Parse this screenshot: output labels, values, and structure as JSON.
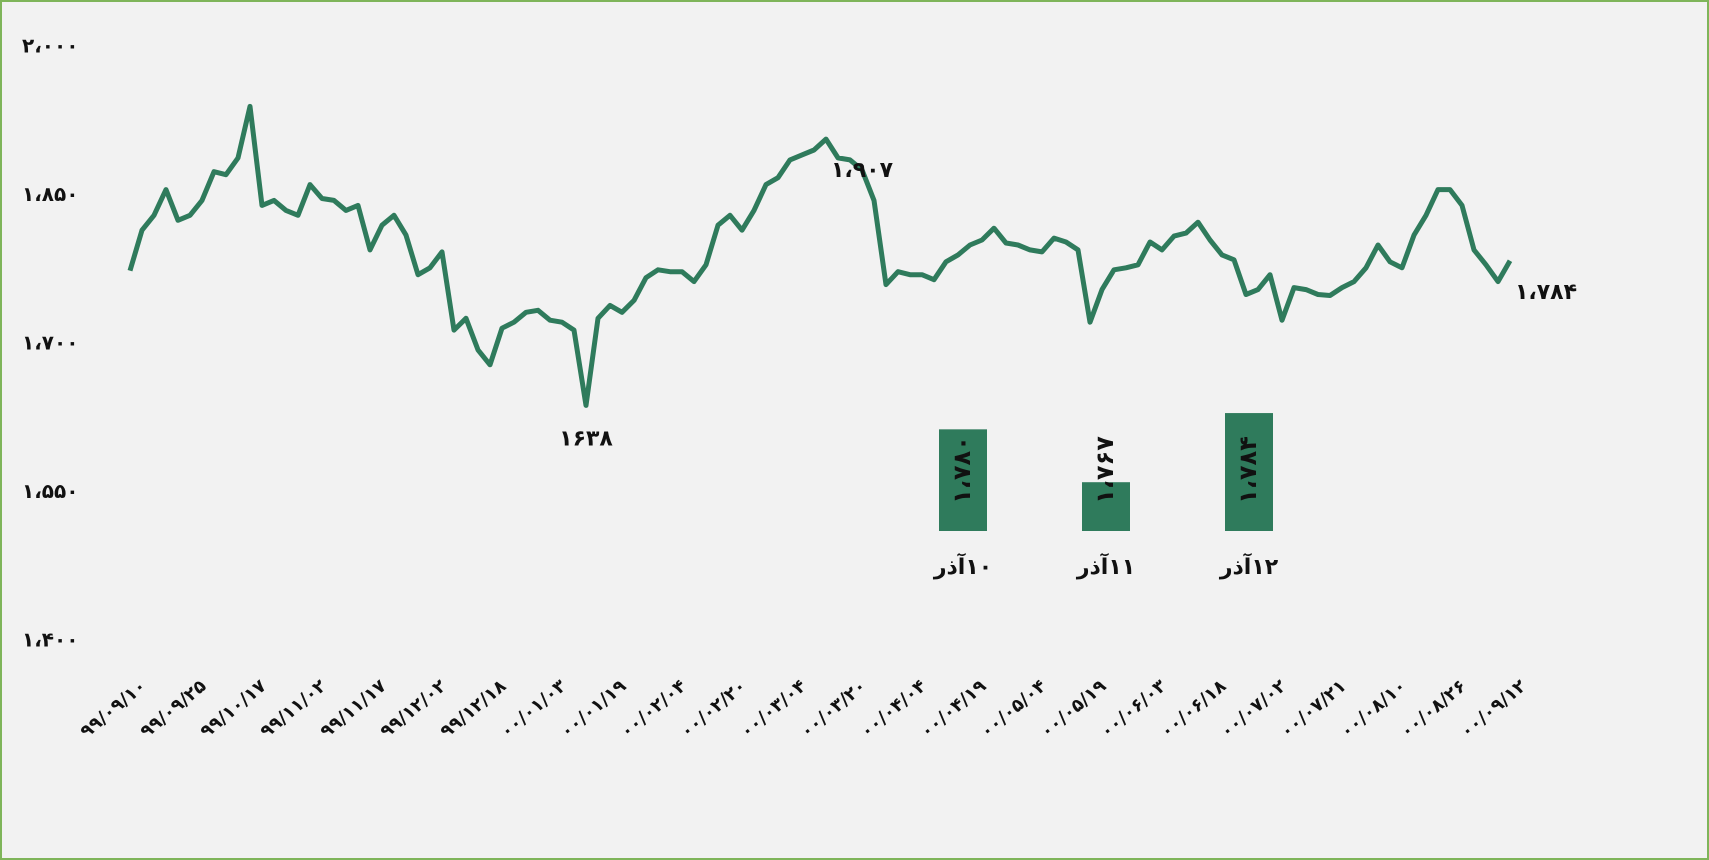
{
  "chart_data": [
    {
      "type": "line",
      "color": "#2f7b5c",
      "ylim": [
        1400,
        2000
      ],
      "yticks": [
        {
          "value": 2000,
          "label": "۲،۰۰۰"
        },
        {
          "value": 1850,
          "label": "۱،۸۵۰"
        },
        {
          "value": 1700,
          "label": "۱،۷۰۰"
        },
        {
          "value": 1550,
          "label": "۱،۵۵۰"
        },
        {
          "value": 1400,
          "label": "۱،۴۰۰"
        }
      ],
      "categories": [
        "۹۹/۰۹/۱۰",
        null,
        null,
        null,
        null,
        "۹۹/۰۹/۲۵",
        null,
        null,
        null,
        null,
        "۹۹/۱۰/۱۷",
        null,
        null,
        null,
        null,
        "۹۹/۱۱/۰۲",
        null,
        null,
        null,
        null,
        "۹۹/۱۱/۱۷",
        null,
        null,
        null,
        null,
        "۹۹/۱۲/۰۲",
        null,
        null,
        null,
        null,
        "۹۹/۱۲/۱۸",
        null,
        null,
        null,
        null,
        "۰۰/۰۱/۰۳",
        null,
        null,
        null,
        null,
        "۰۰/۰۱/۱۹",
        null,
        null,
        null,
        null,
        "۰۰/۰۲/۰۴",
        null,
        null,
        null,
        null,
        "۰۰/۰۲/۲۰",
        null,
        null,
        null,
        null,
        "۰۰/۰۳/۰۴",
        null,
        null,
        null,
        null,
        "۰۰/۰۳/۲۰",
        null,
        null,
        null,
        null,
        "۰۰/۰۴/۰۴",
        null,
        null,
        null,
        null,
        "۰۰/۰۴/۱۹",
        null,
        null,
        null,
        null,
        "۰۰/۰۵/۰۴",
        null,
        null,
        null,
        null,
        "۰۰/۰۵/۱۹",
        null,
        null,
        null,
        null,
        "۰۰/۰۶/۰۳",
        null,
        null,
        null,
        null,
        "۰۰/۰۶/۱۸",
        null,
        null,
        null,
        null,
        "۰۰/۰۷/۰۲",
        null,
        null,
        null,
        null,
        "۰۰/۰۷/۲۱",
        null,
        null,
        null,
        null,
        "۰۰/۰۸/۱۰",
        null,
        null,
        null,
        null,
        "۰۰/۰۸/۲۶",
        null,
        null,
        null,
        null,
        "۰۰/۰۹/۱۲"
      ],
      "values": [
        1774,
        1815,
        1830,
        1856,
        1825,
        1830,
        1845,
        1874,
        1871,
        1888,
        1940,
        1840,
        1845,
        1835,
        1830,
        1861,
        1847,
        1845,
        1835,
        1840,
        1795,
        1820,
        1830,
        1810,
        1770,
        1777,
        1793,
        1714,
        1726,
        1694,
        1679,
        1716,
        1722,
        1732,
        1734,
        1724,
        1722,
        1714,
        1638,
        1726,
        1739,
        1732,
        1744,
        1767,
        1775,
        1773,
        1773,
        1763,
        1780,
        1820,
        1830,
        1815,
        1835,
        1861,
        1868,
        1886,
        1891,
        1896,
        1907,
        1888,
        1886,
        1876,
        1845,
        1760,
        1773,
        1770,
        1770,
        1765,
        1783,
        1790,
        1800,
        1805,
        1817,
        1802,
        1800,
        1795,
        1793,
        1807,
        1803,
        1795,
        1722,
        1755,
        1775,
        1777,
        1780,
        1803,
        1795,
        1809,
        1812,
        1823,
        1805,
        1790,
        1785,
        1750,
        1755,
        1770,
        1724,
        1757,
        1755,
        1750,
        1749,
        1757,
        1763,
        1777,
        1800,
        1783,
        1777,
        1810,
        1830,
        1856,
        1856,
        1840,
        1795,
        1780,
        1763,
        1784
      ],
      "annotations": [
        {
          "label": "۱،۹۰۷",
          "value": 1907
        },
        {
          "label": "۱۶۳۸",
          "value": 1638
        },
        {
          "label": "۱،۷۸۴",
          "value": 1784
        }
      ]
    },
    {
      "type": "bar",
      "color": "#2f7b5c",
      "ylim": [
        1755,
        1785
      ],
      "categories": [
        "۱۰آذر",
        "۱۱آذر",
        "۱۲آذر"
      ],
      "values": [
        1780,
        1767,
        1784
      ],
      "value_labels": [
        "۱،۷۸۰",
        "۱،۷۶۷",
        "۱،۷۸۴"
      ]
    }
  ]
}
